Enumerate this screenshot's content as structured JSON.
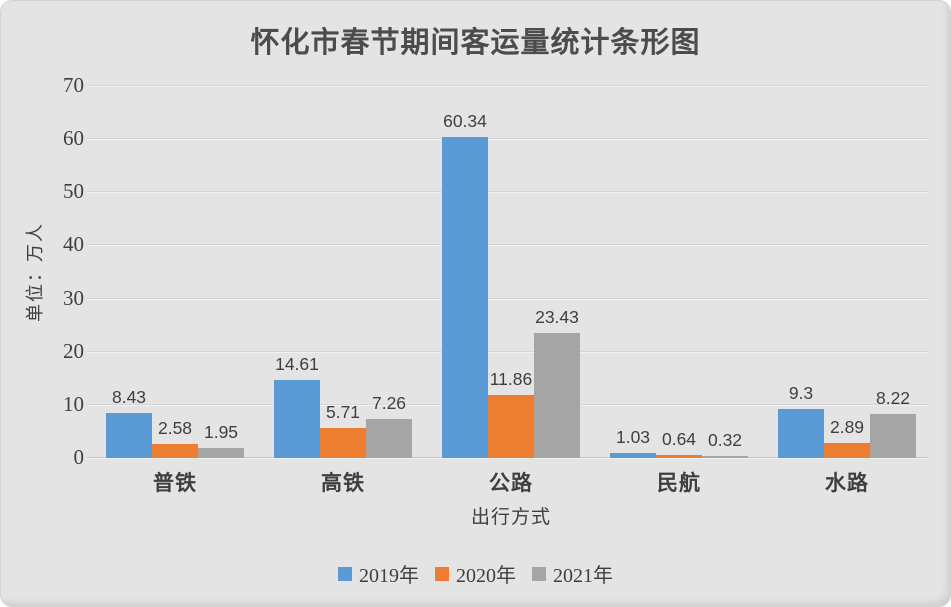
{
  "title": "怀化市春节期间客运量统计条形图",
  "chart_data": {
    "type": "bar",
    "title": "怀化市春节期间客运量统计条形图",
    "categories": [
      "普铁",
      "高铁",
      "公路",
      "民航",
      "水路"
    ],
    "series": [
      {
        "name": "2019年",
        "color": "#5B9BD5",
        "values": [
          8.43,
          14.61,
          60.34,
          1.03,
          9.3
        ]
      },
      {
        "name": "2020年",
        "color": "#ED7D31",
        "values": [
          2.58,
          5.71,
          11.86,
          0.64,
          2.89
        ]
      },
      {
        "name": "2021年",
        "color": "#A5A5A5",
        "values": [
          1.95,
          7.26,
          23.43,
          0.32,
          8.22
        ]
      }
    ],
    "xlabel": "出行方式",
    "ylabel": "单位：万人",
    "ylim": [
      0,
      70
    ],
    "yticks": [
      0,
      10,
      20,
      30,
      40,
      50,
      60,
      70
    ],
    "grid": true,
    "data_labels": true,
    "legend_position": "bottom"
  },
  "colors": {
    "background": "#E4E4E4",
    "text": "#3F3F3F",
    "gridline": "#D6D6D6"
  }
}
